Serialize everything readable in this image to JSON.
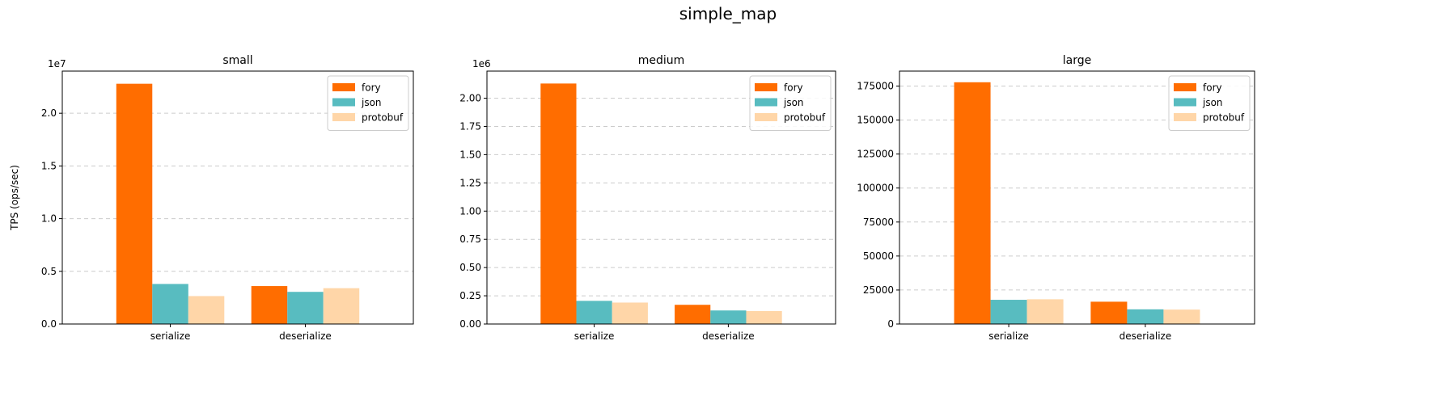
{
  "figure": {
    "suptitle": "simple_map"
  },
  "colors": {
    "fory": "#ff6d00",
    "json": "#58bcc0",
    "protobuf": "#ffd6a8",
    "grid": "#cccccc",
    "axis": "#000000"
  },
  "chart_data": [
    {
      "type": "bar",
      "title": "small",
      "ylabel": "TPS (ops/sec)",
      "ylim": [
        0,
        24000000
      ],
      "offset_label": "1e7",
      "yticks": [
        0,
        5000000,
        10000000,
        15000000,
        20000000
      ],
      "ytick_labels": [
        "0.0",
        "0.5",
        "1.0",
        "1.5",
        "2.0"
      ],
      "categories": [
        "serialize",
        "deserialize"
      ],
      "series": [
        {
          "name": "fory",
          "values": [
            22800000,
            3600000
          ]
        },
        {
          "name": "json",
          "values": [
            3800000,
            3050000
          ]
        },
        {
          "name": "protobuf",
          "values": [
            2650000,
            3400000
          ]
        }
      ],
      "grid": "y",
      "legend": "upper right"
    },
    {
      "type": "bar",
      "title": "medium",
      "ylabel": "",
      "ylim": [
        0,
        2240000
      ],
      "offset_label": "1e6",
      "yticks": [
        0,
        250000,
        500000,
        750000,
        1000000,
        1250000,
        1500000,
        1750000,
        2000000
      ],
      "ytick_labels": [
        "0.00",
        "0.25",
        "0.50",
        "0.75",
        "1.00",
        "1.25",
        "1.50",
        "1.75",
        "2.00"
      ],
      "categories": [
        "serialize",
        "deserialize"
      ],
      "series": [
        {
          "name": "fory",
          "values": [
            2130000,
            170000
          ]
        },
        {
          "name": "json",
          "values": [
            205000,
            120000
          ]
        },
        {
          "name": "protobuf",
          "values": [
            190000,
            115000
          ]
        }
      ],
      "grid": "y",
      "legend": "upper right"
    },
    {
      "type": "bar",
      "title": "large",
      "ylabel": "",
      "ylim": [
        0,
        186000
      ],
      "offset_label": "",
      "yticks": [
        0,
        25000,
        50000,
        75000,
        100000,
        125000,
        150000,
        175000
      ],
      "ytick_labels": [
        "0",
        "25000",
        "50000",
        "75000",
        "100000",
        "125000",
        "150000",
        "175000"
      ],
      "categories": [
        "serialize",
        "deserialize"
      ],
      "series": [
        {
          "name": "fory",
          "values": [
            177800,
            16400
          ]
        },
        {
          "name": "json",
          "values": [
            17800,
            10800
          ]
        },
        {
          "name": "protobuf",
          "values": [
            18200,
            10600
          ]
        }
      ],
      "grid": "y",
      "legend": "upper right"
    }
  ]
}
